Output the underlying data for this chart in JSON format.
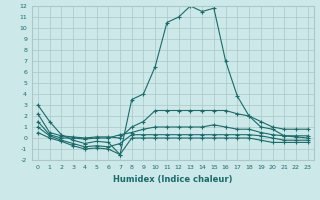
{
  "xlabel": "Humidex (Indice chaleur)",
  "x": [
    0,
    1,
    2,
    3,
    4,
    5,
    6,
    7,
    8,
    9,
    10,
    11,
    12,
    13,
    14,
    15,
    16,
    17,
    18,
    19,
    20,
    21,
    22,
    23
  ],
  "line1": [
    3.0,
    1.5,
    0.3,
    -0.2,
    -0.5,
    -0.3,
    -0.4,
    -1.5,
    3.5,
    4.0,
    6.5,
    10.5,
    11.0,
    12.0,
    11.5,
    11.8,
    7.0,
    3.8,
    2.0,
    1.0,
    0.8,
    0.2,
    0.1,
    0.0
  ],
  "line2": [
    2.2,
    0.5,
    0.2,
    0.1,
    0.0,
    0.1,
    0.1,
    0.0,
    1.0,
    1.5,
    2.5,
    2.5,
    2.5,
    2.5,
    2.5,
    2.5,
    2.5,
    2.2,
    2.0,
    1.5,
    1.0,
    0.8,
    0.8,
    0.8
  ],
  "line3": [
    1.5,
    0.3,
    0.0,
    0.0,
    -0.1,
    0.0,
    0.0,
    0.3,
    0.5,
    0.8,
    1.0,
    1.0,
    1.0,
    1.0,
    1.0,
    1.2,
    1.0,
    0.8,
    0.8,
    0.5,
    0.3,
    0.2,
    0.2,
    0.2
  ],
  "line4": [
    1.0,
    0.2,
    -0.2,
    -0.5,
    -0.8,
    -0.7,
    -0.8,
    -0.5,
    0.3,
    0.3,
    0.3,
    0.3,
    0.3,
    0.3,
    0.3,
    0.3,
    0.3,
    0.3,
    0.3,
    0.2,
    0.0,
    -0.2,
    -0.2,
    -0.2
  ],
  "line5": [
    0.5,
    0.0,
    -0.3,
    -0.7,
    -1.0,
    -0.9,
    -1.0,
    -1.5,
    0.0,
    0.0,
    0.0,
    0.0,
    0.0,
    0.0,
    0.0,
    0.0,
    0.0,
    0.0,
    0.0,
    -0.2,
    -0.4,
    -0.4,
    -0.4,
    -0.4
  ],
  "ylim": [
    -2,
    12
  ],
  "yticks": [
    -2,
    -1,
    0,
    1,
    2,
    3,
    4,
    5,
    6,
    7,
    8,
    9,
    10,
    11,
    12
  ],
  "bg_color": "#cce8e8",
  "line_color": "#1a6b6b",
  "grid_color": "#aac8c8"
}
